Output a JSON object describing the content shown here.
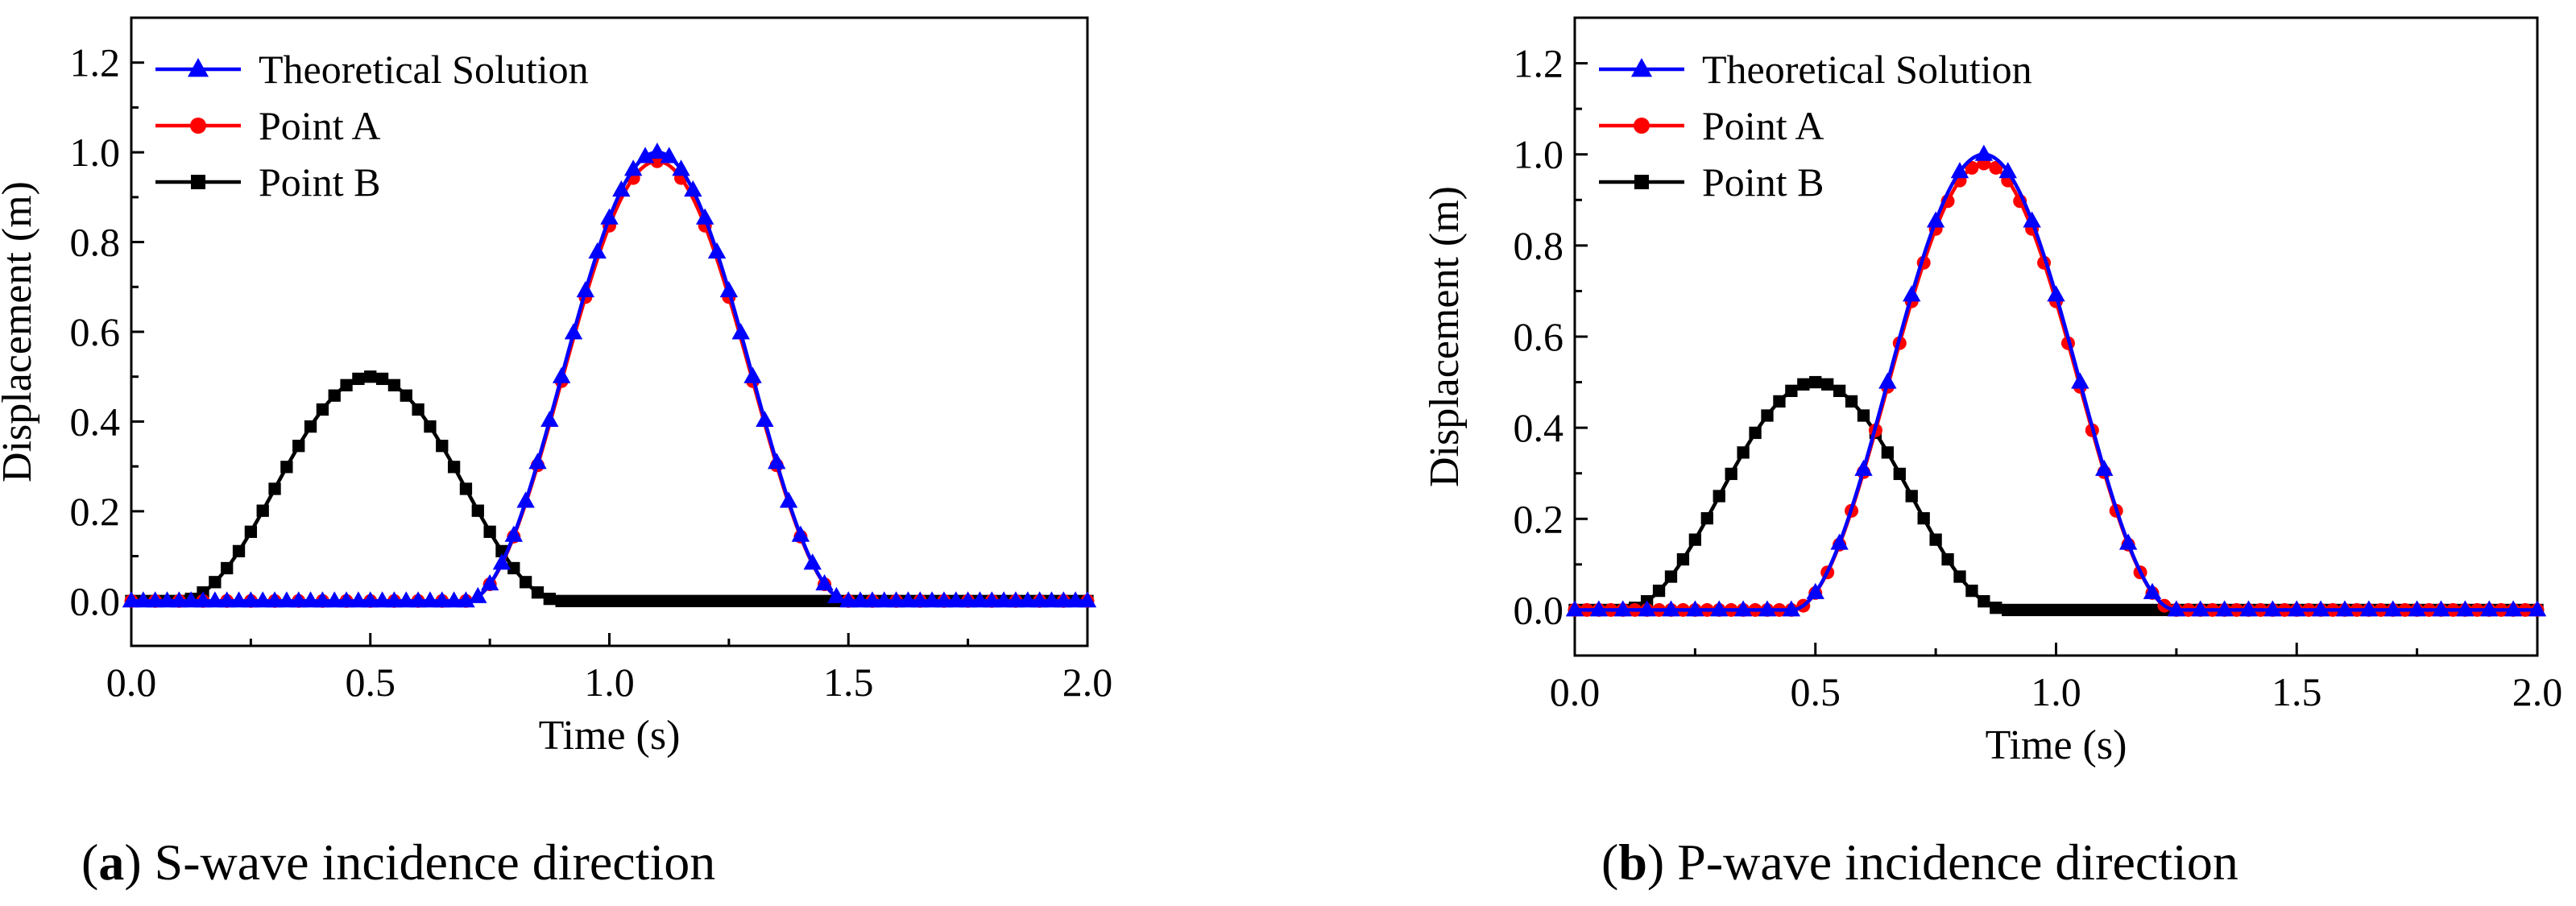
{
  "chart_data": [
    {
      "type": "line",
      "panel_label": "a",
      "caption": "S-wave incidence direction",
      "xlabel": "Time (s)",
      "ylabel": "Displacement (m)",
      "xlim": [
        0.0,
        2.0
      ],
      "ylim": [
        -0.1,
        1.3
      ],
      "xticks": [
        "0.0",
        "0.5",
        "1.0",
        "1.5",
        "2.0"
      ],
      "yticks": [
        "0.0",
        "0.2",
        "0.4",
        "0.6",
        "0.8",
        "1.0",
        "1.2"
      ],
      "legend_position": "top-left",
      "series": [
        {
          "name": "Theoretical Solution",
          "color": "#0000ff",
          "marker": "triangle",
          "peak_time": 1.1,
          "peak": 1.0,
          "half_width": 0.4,
          "sample_step": 0.025
        },
        {
          "name": "Point A",
          "color": "#ff0000",
          "marker": "circle",
          "peak_time": 1.1,
          "peak": 0.98,
          "half_width": 0.4,
          "sample_step": 0.05
        },
        {
          "name": "Point B",
          "color": "#000000",
          "marker": "square",
          "peak_time": 0.5,
          "peak": 0.5,
          "half_width": 0.4,
          "sample_step": 0.025
        }
      ]
    },
    {
      "type": "line",
      "panel_label": "b",
      "caption": "P-wave incidence direction",
      "xlabel": "Time (s)",
      "ylabel": "Displacement (m)",
      "xlim": [
        0.0,
        2.0
      ],
      "ylim": [
        -0.1,
        1.3
      ],
      "xticks": [
        "0.0",
        "0.5",
        "1.0",
        "1.5",
        "2.0"
      ],
      "yticks": [
        "0.0",
        "0.2",
        "0.4",
        "0.6",
        "0.8",
        "1.0",
        "1.2"
      ],
      "legend_position": "top-left",
      "series": [
        {
          "name": "Theoretical Solution",
          "color": "#0000ff",
          "marker": "triangle",
          "peak_time": 0.85,
          "peak": 1.0,
          "half_width": 0.4,
          "sample_step": 0.05
        },
        {
          "name": "Point A",
          "color": "#ff0000",
          "marker": "circle",
          "peak_time": 0.85,
          "peak": 0.98,
          "half_width": 0.4,
          "sample_step": 0.025
        },
        {
          "name": "Point B",
          "color": "#000000",
          "marker": "square",
          "peak_time": 0.5,
          "peak": 0.5,
          "half_width": 0.4,
          "sample_step": 0.025
        }
      ]
    }
  ]
}
